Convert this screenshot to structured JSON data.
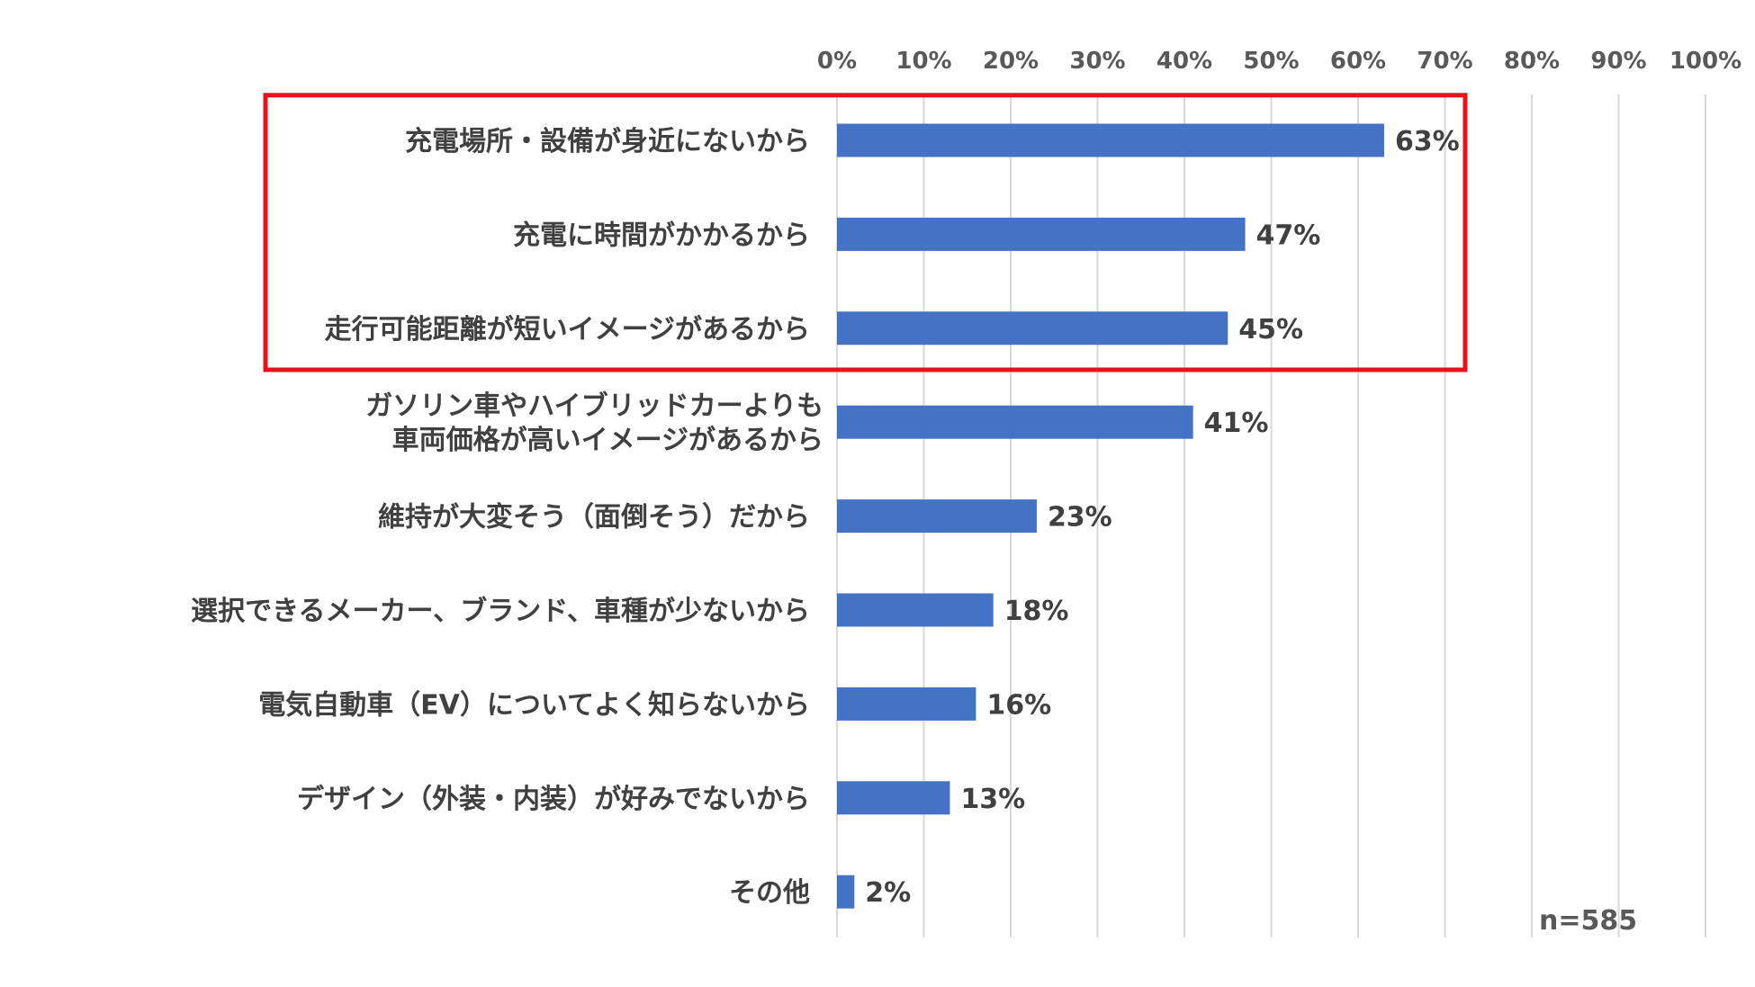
{
  "chart_data": {
    "type": "bar",
    "orientation": "horizontal",
    "categories": [
      [
        "充電場所・設備が身近にないから"
      ],
      [
        "充電に時間がかかるから"
      ],
      [
        "走行可能距離が短いイメージがあるから"
      ],
      [
        "ガソリン車やハイブリッドカーよりも",
        "車両価格が高いイメージがあるから"
      ],
      [
        "維持が大変そう（面倒そう）だから"
      ],
      [
        "選択できるメーカー、ブランド、車種が少ないから"
      ],
      [
        "電気自動車（EV）についてよく知らないから"
      ],
      [
        "デザイン（外装・内装）が好みでないから"
      ],
      [
        "その他"
      ]
    ],
    "values": [
      63,
      47,
      45,
      41,
      23,
      18,
      16,
      13,
      2
    ],
    "value_labels": [
      "63%",
      "47%",
      "45%",
      "41%",
      "23%",
      "18%",
      "16%",
      "13%",
      "2%"
    ],
    "xlim": [
      0,
      100
    ],
    "x_ticks": [
      0,
      10,
      20,
      30,
      40,
      50,
      60,
      70,
      80,
      90,
      100
    ],
    "x_tick_labels": [
      "0%",
      "10%",
      "20%",
      "30%",
      "40%",
      "50%",
      "60%",
      "70%",
      "80%",
      "90%",
      "100%"
    ],
    "x_axis_position": "top",
    "grid": true,
    "bar_color": "#4472C4",
    "gridline_color": "#D9D9D9",
    "highlight": {
      "categories_index": [
        0,
        1,
        2
      ],
      "color": "#E3141B"
    },
    "sample_size_label": "n=585"
  }
}
